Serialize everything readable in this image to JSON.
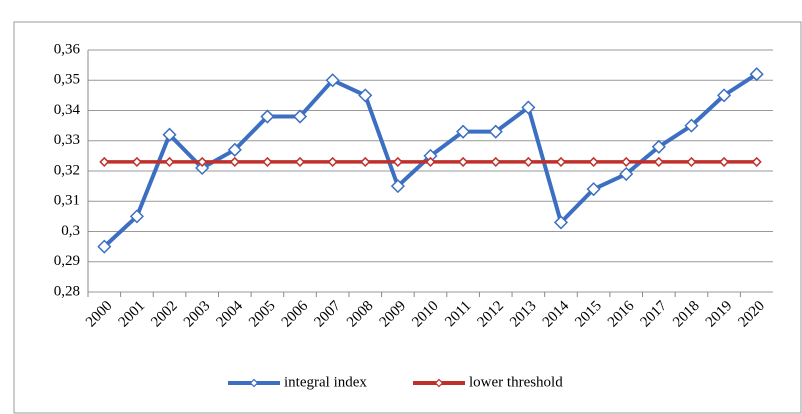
{
  "chart_data": {
    "type": "line",
    "categories": [
      "2000",
      "2001",
      "2002",
      "2003",
      "2004",
      "2005",
      "2006",
      "2007",
      "2008",
      "2009",
      "2010",
      "2011",
      "2012",
      "2013",
      "2014",
      "2015",
      "2016",
      "2017",
      "2018",
      "2019",
      "2020"
    ],
    "series": [
      {
        "name": "integral index",
        "color": "#3c6fc2",
        "values": [
          0.295,
          0.305,
          0.332,
          0.321,
          0.327,
          0.338,
          0.338,
          0.35,
          0.345,
          0.315,
          0.325,
          0.333,
          0.333,
          0.341,
          0.303,
          0.314,
          0.319,
          0.328,
          0.335,
          0.345,
          0.352
        ]
      },
      {
        "name": "lower threshold",
        "color": "#c0302b",
        "values": [
          0.323,
          0.323,
          0.323,
          0.323,
          0.323,
          0.323,
          0.323,
          0.323,
          0.323,
          0.323,
          0.323,
          0.323,
          0.323,
          0.323,
          0.323,
          0.323,
          0.323,
          0.323,
          0.323,
          0.323,
          0.323
        ]
      }
    ],
    "ylim": [
      0.28,
      0.36
    ],
    "yticks": [
      {
        "value": 0.28,
        "label": "0,28"
      },
      {
        "value": 0.29,
        "label": "0,29"
      },
      {
        "value": 0.3,
        "label": "0,3"
      },
      {
        "value": 0.31,
        "label": "0,31"
      },
      {
        "value": 0.32,
        "label": "0,32"
      },
      {
        "value": 0.33,
        "label": "0,33"
      },
      {
        "value": 0.34,
        "label": "0,34"
      },
      {
        "value": 0.35,
        "label": "0,35"
      },
      {
        "value": 0.36,
        "label": "0,36"
      }
    ],
    "grid": true,
    "legend": "bottom"
  }
}
